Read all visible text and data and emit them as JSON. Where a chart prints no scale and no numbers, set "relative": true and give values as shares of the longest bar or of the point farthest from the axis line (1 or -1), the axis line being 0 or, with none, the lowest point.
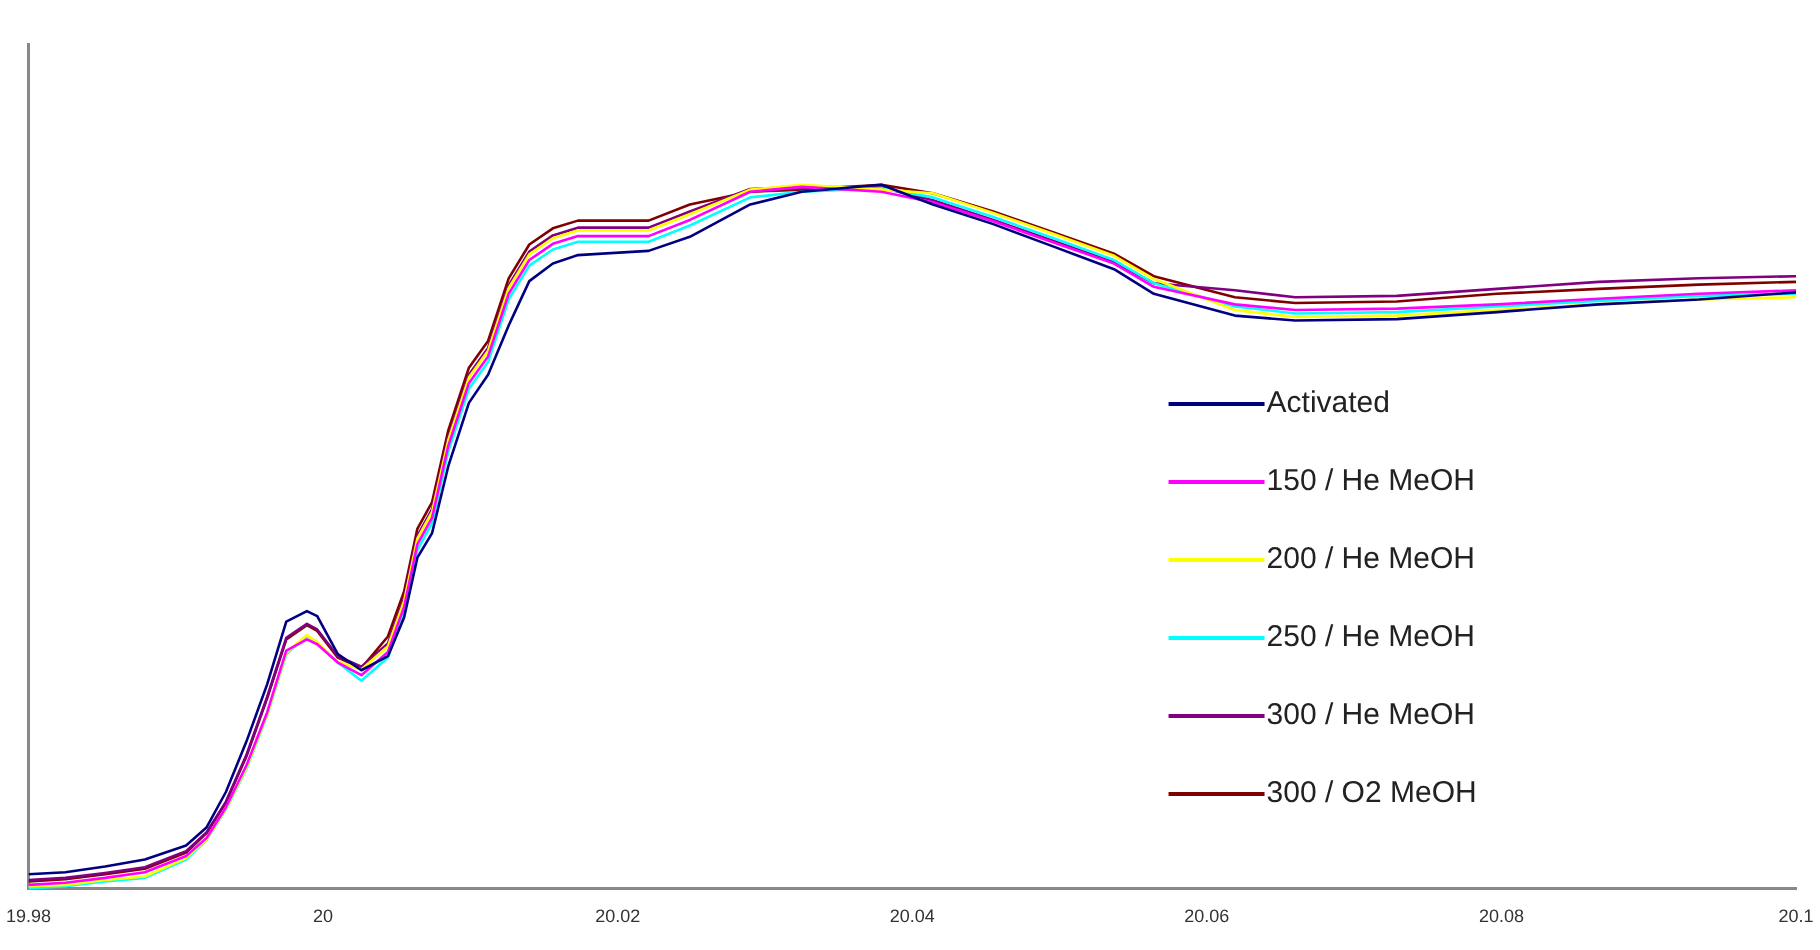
{
  "chart_data": {
    "type": "line",
    "relative": true,
    "legend": "right",
    "marker": "none",
    "line_style": "solid",
    "grid": false,
    "xlim": [
      19.98,
      20.1
    ],
    "xticks": [
      19.98,
      20,
      20.02,
      20.04,
      20.06,
      20.08,
      20.1
    ],
    "x": [
      19.98,
      19.9825,
      19.9852,
      19.9879,
      19.9907,
      19.9921,
      19.9934,
      19.9948,
      19.9962,
      19.9975,
      19.9989,
      19.9996,
      20.001,
      20.0026,
      20.0044,
      20.0055,
      20.0064,
      20.0074,
      20.0085,
      20.0099,
      20.0112,
      20.0126,
      20.014,
      20.0156,
      20.0173,
      20.0221,
      20.0249,
      20.029,
      20.0325,
      20.0379,
      20.0414,
      20.0455,
      20.0496,
      20.0537,
      20.0564,
      20.0619,
      20.066,
      20.0729,
      20.0797,
      20.0866,
      20.0934,
      20.1
    ],
    "series": [
      {
        "name": "Activated",
        "color": "#000080",
        "values": [
          0.02,
          0.023,
          0.031,
          0.041,
          0.061,
          0.087,
          0.137,
          0.209,
          0.29,
          0.379,
          0.394,
          0.387,
          0.333,
          0.31,
          0.33,
          0.385,
          0.47,
          0.505,
          0.6,
          0.69,
          0.73,
          0.8,
          0.863,
          0.888,
          0.9,
          0.906,
          0.926,
          0.972,
          0.99,
          1,
          0.972,
          0.944,
          0.912,
          0.88,
          0.845,
          0.814,
          0.807,
          0.809,
          0.819,
          0.83,
          0.837,
          0.847
        ]
      },
      {
        "name": "150 / He MeOH",
        "color": "#ff00ff",
        "values": [
          0.005,
          0.008,
          0.015,
          0.023,
          0.046,
          0.072,
          0.115,
          0.175,
          0.25,
          0.338,
          0.354,
          0.347,
          0.321,
          0.303,
          0.336,
          0.4,
          0.489,
          0.527,
          0.629,
          0.718,
          0.756,
          0.845,
          0.893,
          0.916,
          0.927,
          0.927,
          0.95,
          0.99,
          0.997,
          0.99,
          0.975,
          0.948,
          0.918,
          0.888,
          0.855,
          0.83,
          0.822,
          0.824,
          0.83,
          0.838,
          0.845,
          0.85
        ]
      },
      {
        "name": "200 / He MeOH",
        "color": "#ffff00",
        "values": [
          0.003,
          0.005,
          0.012,
          0.017,
          0.043,
          0.07,
          0.113,
          0.172,
          0.247,
          0.335,
          0.36,
          0.35,
          0.322,
          0.311,
          0.344,
          0.408,
          0.497,
          0.535,
          0.637,
          0.726,
          0.764,
          0.853,
          0.901,
          0.924,
          0.935,
          0.935,
          0.958,
          0.993,
          1,
          0.993,
          0.988,
          0.96,
          0.93,
          0.899,
          0.866,
          0.822,
          0.812,
          0.814,
          0.822,
          0.83,
          0.837,
          0.84
        ]
      },
      {
        "name": "250 / He MeOH",
        "color": "#00ffff",
        "values": [
          0,
          0.003,
          0.01,
          0.015,
          0.041,
          0.069,
          0.112,
          0.17,
          0.246,
          0.333,
          0.359,
          0.349,
          0.321,
          0.295,
          0.328,
          0.392,
          0.481,
          0.519,
          0.621,
          0.71,
          0.748,
          0.837,
          0.885,
          0.908,
          0.919,
          0.919,
          0.942,
          0.982,
          0.99,
          0.995,
          0.982,
          0.954,
          0.924,
          0.893,
          0.86,
          0.827,
          0.817,
          0.819,
          0.827,
          0.835,
          0.842,
          0.845
        ]
      },
      {
        "name": "300 / He MeOH",
        "color": "#800080",
        "values": [
          0.012,
          0.015,
          0.022,
          0.03,
          0.053,
          0.08,
          0.123,
          0.19,
          0.272,
          0.356,
          0.376,
          0.368,
          0.33,
          0.315,
          0.348,
          0.412,
          0.501,
          0.539,
          0.641,
          0.73,
          0.768,
          0.857,
          0.905,
          0.928,
          0.939,
          0.939,
          0.962,
          0.994,
          0.997,
          0.996,
          0.978,
          0.95,
          0.92,
          0.89,
          0.86,
          0.85,
          0.84,
          0.842,
          0.852,
          0.862,
          0.867,
          0.87
        ]
      },
      {
        "name": "300 / O2 MeOH",
        "color": "#800000",
        "values": [
          0.01,
          0.013,
          0.02,
          0.028,
          0.051,
          0.079,
          0.122,
          0.188,
          0.27,
          0.354,
          0.374,
          0.366,
          0.328,
          0.313,
          0.358,
          0.422,
          0.511,
          0.549,
          0.651,
          0.74,
          0.778,
          0.867,
          0.915,
          0.938,
          0.949,
          0.949,
          0.972,
          0.99,
          0.993,
          1,
          0.988,
          0.962,
          0.932,
          0.902,
          0.87,
          0.84,
          0.832,
          0.834,
          0.845,
          0.852,
          0.858,
          0.862
        ]
      }
    ]
  }
}
